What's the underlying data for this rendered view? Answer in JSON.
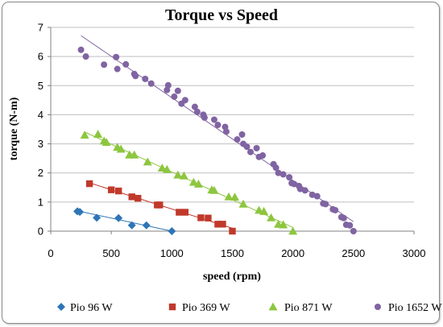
{
  "chart_data": {
    "type": "scatter",
    "title": "Torque vs Speed",
    "xlabel": "speed (rpm)",
    "ylabel": "torque (N-m)",
    "xlim": [
      0,
      3000
    ],
    "ylim": [
      0,
      7
    ],
    "xticks": [
      0,
      500,
      1000,
      1500,
      2000,
      2500,
      3000
    ],
    "yticks": [
      0,
      1,
      2,
      3,
      4,
      5,
      6,
      7
    ],
    "grid": "horizontal",
    "legend": "bottom",
    "trendlines": true,
    "series": [
      {
        "name": "Pio 96 W",
        "color": "#2e75b6",
        "marker": "diamond",
        "points": [
          [
            220,
            0.68
          ],
          [
            240,
            0.66
          ],
          [
            380,
            0.46
          ],
          [
            560,
            0.45
          ],
          [
            670,
            0.2
          ],
          [
            790,
            0.2
          ],
          [
            1000,
            0.0
          ]
        ],
        "fit": [
          [
            220,
            0.7
          ],
          [
            1000,
            0.0
          ]
        ]
      },
      {
        "name": "Pio 369 W",
        "color": "#c0392b",
        "marker": "square",
        "points": [
          [
            320,
            1.63
          ],
          [
            500,
            1.42
          ],
          [
            560,
            1.38
          ],
          [
            670,
            1.18
          ],
          [
            720,
            1.13
          ],
          [
            880,
            0.9
          ],
          [
            900,
            0.9
          ],
          [
            1060,
            0.65
          ],
          [
            1110,
            0.65
          ],
          [
            1240,
            0.46
          ],
          [
            1300,
            0.45
          ],
          [
            1380,
            0.24
          ],
          [
            1420,
            0.24
          ],
          [
            1500,
            0.0
          ]
        ]
      },
      {
        "name": "Pio 871 W",
        "color": "#8dc63f",
        "marker": "triangle",
        "points": [
          [
            280,
            3.3
          ],
          [
            390,
            3.33
          ],
          [
            440,
            3.1
          ],
          [
            460,
            3.05
          ],
          [
            550,
            2.88
          ],
          [
            580,
            2.82
          ],
          [
            650,
            2.62
          ],
          [
            690,
            2.62
          ],
          [
            800,
            2.38
          ],
          [
            920,
            2.17
          ],
          [
            960,
            2.12
          ],
          [
            1050,
            1.93
          ],
          [
            1100,
            1.9
          ],
          [
            1180,
            1.68
          ],
          [
            1220,
            1.62
          ],
          [
            1330,
            1.42
          ],
          [
            1350,
            1.4
          ],
          [
            1470,
            1.18
          ],
          [
            1520,
            1.17
          ],
          [
            1590,
            0.93
          ],
          [
            1720,
            0.72
          ],
          [
            1760,
            0.68
          ],
          [
            1820,
            0.46
          ],
          [
            1880,
            0.24
          ],
          [
            1920,
            0.22
          ],
          [
            2000,
            0.0
          ]
        ]
      },
      {
        "name": "Pio 1652 W",
        "color": "#8064a2",
        "marker": "circle",
        "points": [
          [
            250,
            6.23
          ],
          [
            290,
            6.0
          ],
          [
            440,
            5.72
          ],
          [
            540,
            5.98
          ],
          [
            550,
            5.57
          ],
          [
            620,
            5.73
          ],
          [
            690,
            5.4
          ],
          [
            700,
            5.33
          ],
          [
            780,
            5.23
          ],
          [
            830,
            5.07
          ],
          [
            960,
            4.85
          ],
          [
            970,
            5.01
          ],
          [
            1020,
            4.62
          ],
          [
            1050,
            4.82
          ],
          [
            1080,
            4.38
          ],
          [
            1110,
            4.5
          ],
          [
            1190,
            4.27
          ],
          [
            1210,
            4.1
          ],
          [
            1260,
            4.0
          ],
          [
            1270,
            3.9
          ],
          [
            1350,
            3.83
          ],
          [
            1380,
            3.65
          ],
          [
            1440,
            3.58
          ],
          [
            1450,
            3.42
          ],
          [
            1540,
            3.15
          ],
          [
            1580,
            3.32
          ],
          [
            1590,
            3.0
          ],
          [
            1620,
            2.9
          ],
          [
            1650,
            2.72
          ],
          [
            1700,
            2.85
          ],
          [
            1720,
            2.55
          ],
          [
            1750,
            2.6
          ],
          [
            1840,
            2.3
          ],
          [
            1860,
            2.18
          ],
          [
            1880,
            2.0
          ],
          [
            1920,
            1.95
          ],
          [
            1970,
            1.85
          ],
          [
            1990,
            1.65
          ],
          [
            2010,
            1.62
          ],
          [
            2050,
            1.55
          ],
          [
            2060,
            1.45
          ],
          [
            2100,
            1.4
          ],
          [
            2160,
            1.25
          ],
          [
            2200,
            1.2
          ],
          [
            2250,
            0.95
          ],
          [
            2270,
            0.93
          ],
          [
            2330,
            0.75
          ],
          [
            2350,
            0.72
          ],
          [
            2400,
            0.48
          ],
          [
            2420,
            0.45
          ],
          [
            2440,
            0.22
          ],
          [
            2470,
            0.2
          ],
          [
            2500,
            0.0
          ]
        ]
      }
    ]
  }
}
